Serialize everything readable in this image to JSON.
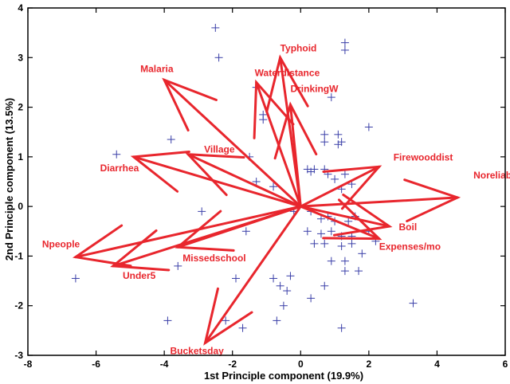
{
  "chart_data": {
    "type": "scatter",
    "title": "",
    "xlabel": "1st  Principle  component  (19.9%)",
    "ylabel": "2nd  Principle  component  (13.5%)",
    "xlim": [
      -8,
      6
    ],
    "ylim": [
      -3,
      4
    ],
    "xticks": [
      "-8",
      "-6",
      "-4",
      "-2",
      "0",
      "2",
      "4",
      "6"
    ],
    "yticks": [
      "-3",
      "-2",
      "-1",
      "0",
      "1",
      "2",
      "3",
      "4"
    ],
    "grid": false,
    "legend": "none",
    "colors": {
      "vectors": "#e8262d",
      "points": "#3a3fa8",
      "axes": "#000000"
    },
    "points": [
      [
        -2.5,
        3.6
      ],
      [
        -2.4,
        3.0
      ],
      [
        -1.3,
        2.4
      ],
      [
        -1.1,
        1.85
      ],
      [
        -1.1,
        1.75
      ],
      [
        1.3,
        3.3
      ],
      [
        1.3,
        3.15
      ],
      [
        0.9,
        2.2
      ],
      [
        2.0,
        1.6
      ],
      [
        0.7,
        1.45
      ],
      [
        1.1,
        1.45
      ],
      [
        0.7,
        1.3
      ],
      [
        1.2,
        1.3
      ],
      [
        1.1,
        1.25
      ],
      [
        -5.4,
        1.05
      ],
      [
        -3.8,
        1.35
      ],
      [
        -1.5,
        1.0
      ],
      [
        0.2,
        0.75
      ],
      [
        0.3,
        0.7
      ],
      [
        0.4,
        0.75
      ],
      [
        0.7,
        0.75
      ],
      [
        0.8,
        0.65
      ],
      [
        1.0,
        0.55
      ],
      [
        1.3,
        0.65
      ],
      [
        1.5,
        0.45
      ],
      [
        1.2,
        0.35
      ],
      [
        -0.8,
        0.4
      ],
      [
        -1.3,
        0.5
      ],
      [
        -2.9,
        -0.1
      ],
      [
        -1.6,
        -0.5
      ],
      [
        -0.2,
        -0.1
      ],
      [
        0.3,
        -0.1
      ],
      [
        0.6,
        -0.25
      ],
      [
        0.8,
        -0.2
      ],
      [
        1.0,
        -0.3
      ],
      [
        1.4,
        -0.3
      ],
      [
        1.6,
        -0.2
      ],
      [
        0.2,
        -0.5
      ],
      [
        0.6,
        -0.55
      ],
      [
        0.9,
        -0.5
      ],
      [
        1.2,
        -0.6
      ],
      [
        1.5,
        -0.6
      ],
      [
        2.0,
        -0.5
      ],
      [
        2.2,
        -0.7
      ],
      [
        0.4,
        -0.75
      ],
      [
        0.7,
        -0.75
      ],
      [
        1.2,
        -0.8
      ],
      [
        1.5,
        -0.75
      ],
      [
        1.8,
        -0.95
      ],
      [
        0.9,
        -1.1
      ],
      [
        1.3,
        -1.1
      ],
      [
        1.7,
        -1.3
      ],
      [
        1.3,
        -1.3
      ],
      [
        -3.6,
        -1.2
      ],
      [
        -1.9,
        -1.45
      ],
      [
        -0.8,
        -1.45
      ],
      [
        -0.3,
        -1.4
      ],
      [
        -0.6,
        -1.6
      ],
      [
        -0.4,
        -1.7
      ],
      [
        -0.5,
        -2.0
      ],
      [
        -0.7,
        -2.3
      ],
      [
        0.3,
        -1.85
      ],
      [
        0.7,
        -1.6
      ],
      [
        -6.6,
        -1.45
      ],
      [
        -3.9,
        -2.3
      ],
      [
        -2.2,
        -2.3
      ],
      [
        -1.7,
        -2.45
      ],
      [
        1.2,
        -2.45
      ],
      [
        3.3,
        -1.95
      ]
    ],
    "vectors": [
      {
        "name": "Typhoid",
        "x": -0.6,
        "y": 3.0
      },
      {
        "name": "Waterdistance",
        "x": -1.3,
        "y": 2.5
      },
      {
        "name": "DrinkingW",
        "x": -0.3,
        "y": 2.05
      },
      {
        "name": "Malaria",
        "x": -4.0,
        "y": 2.55
      },
      {
        "name": "Village",
        "x": -3.3,
        "y": 1.05
      },
      {
        "name": "Diarrhea",
        "x": -4.9,
        "y": 1.0
      },
      {
        "name": "Firewooddist",
        "x": 2.3,
        "y": 0.8
      },
      {
        "name": "Noreliable",
        "x": 4.6,
        "y": 0.18
      },
      {
        "name": "Boil",
        "x": 2.6,
        "y": -0.4
      },
      {
        "name": "Expenses/mo",
        "x": 2.3,
        "y": -0.65
      },
      {
        "name": "Npeople",
        "x": -6.6,
        "y": -1.02
      },
      {
        "name": "Under5",
        "x": -5.5,
        "y": -1.2
      },
      {
        "name": "Missedschool",
        "x": -3.6,
        "y": -0.82
      },
      {
        "name": "Bucketsday",
        "x": -2.8,
        "y": -2.75
      }
    ]
  }
}
